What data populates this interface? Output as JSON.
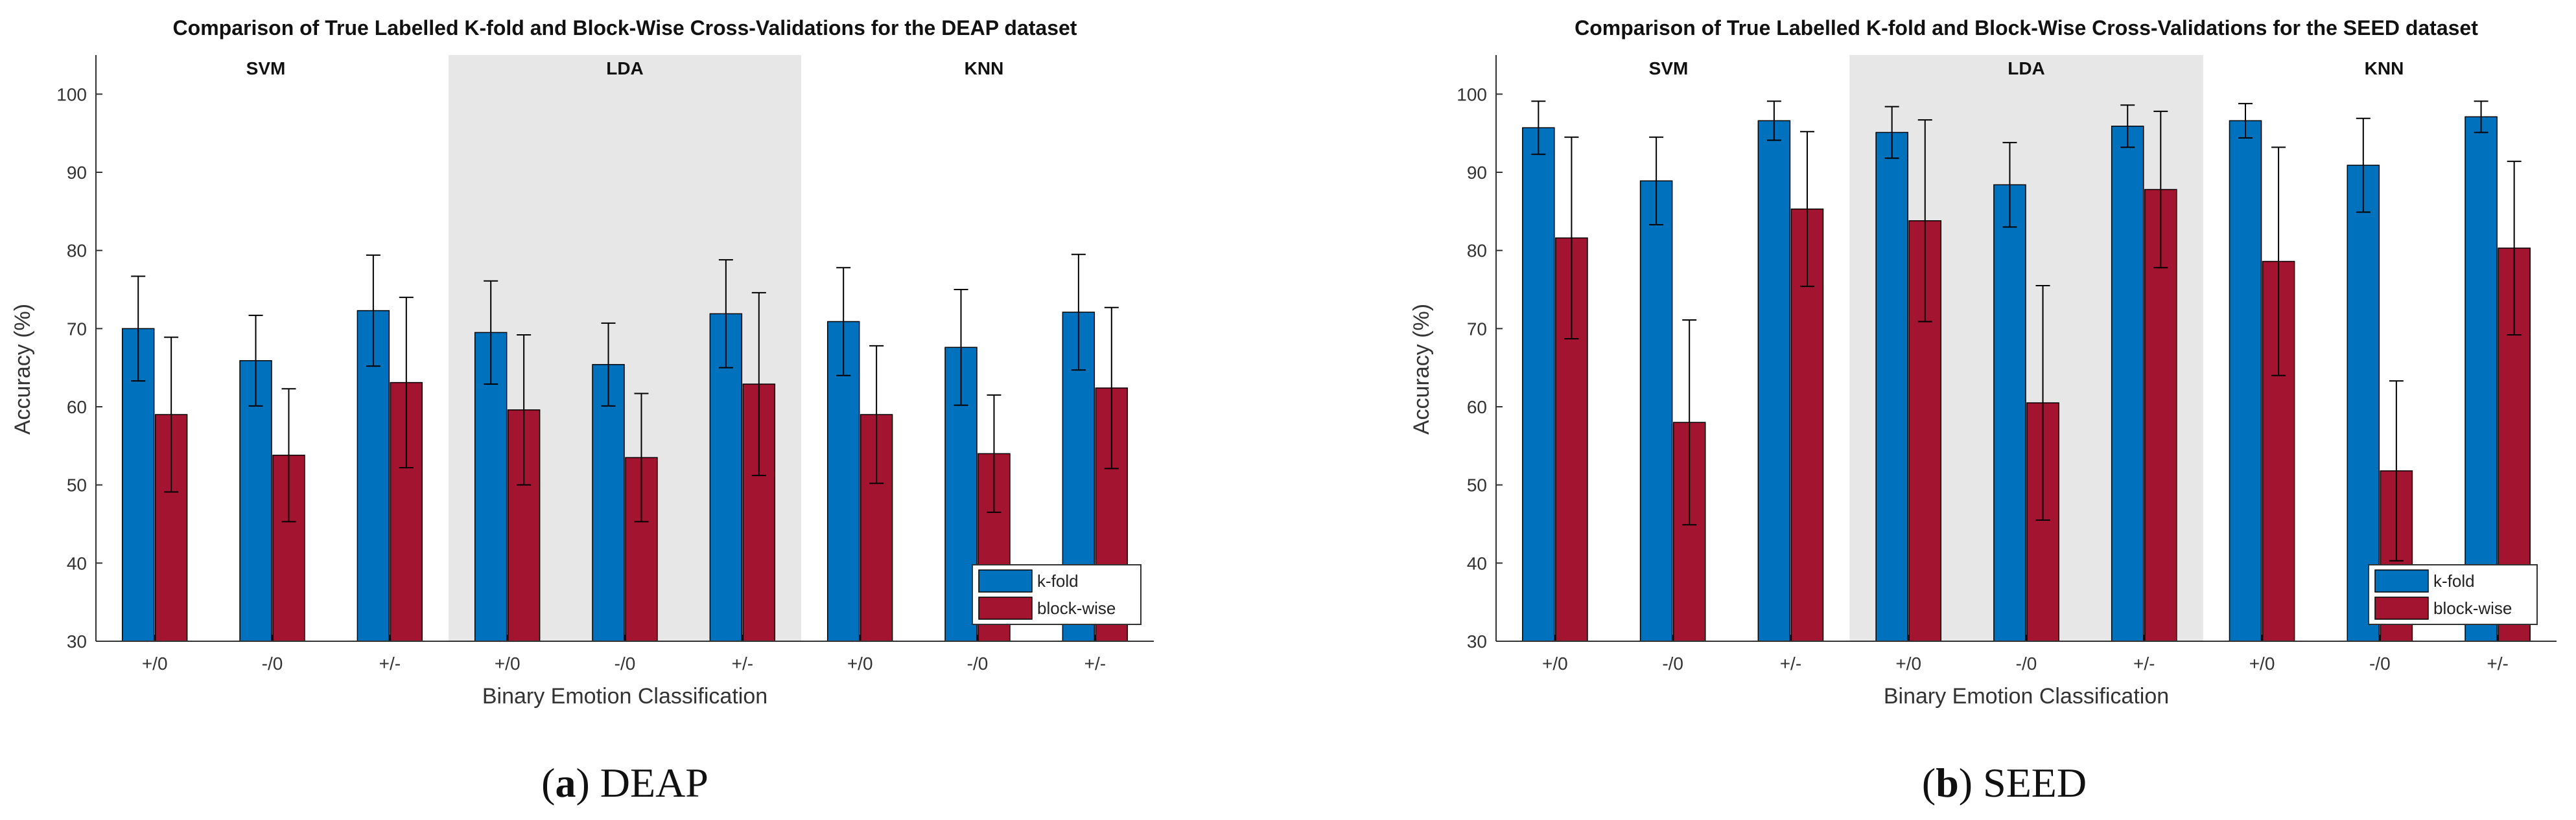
{
  "colors": {
    "kfold": "#0072BD",
    "blockwise": "#A2142F",
    "shade": "#E7E7E7"
  },
  "chart_data": [
    {
      "type": "bar",
      "title": "Comparison of True Labelled K-fold and Block-Wise Cross-Validations for the DEAP dataset",
      "xlabel": "Binary Emotion Classification",
      "ylabel": "Accuracy (%)",
      "ylim": [
        30,
        105
      ],
      "yticks": [
        30,
        40,
        50,
        60,
        70,
        80,
        90,
        100
      ],
      "groups": [
        "SVM",
        "LDA",
        "KNN"
      ],
      "shaded_group": "LDA",
      "categories": [
        "+/0",
        "-/0",
        "+/-",
        "+/0",
        "-/0",
        "+/-",
        "+/0",
        "-/0",
        "+/-"
      ],
      "legend_position": "bottom-right",
      "series": [
        {
          "name": "k-fold",
          "values": [
            70.0,
            65.9,
            72.3,
            69.5,
            65.4,
            71.9,
            70.9,
            67.6,
            72.1
          ],
          "err": [
            6.7,
            5.8,
            7.1,
            6.6,
            5.3,
            6.9,
            6.9,
            7.4,
            7.4
          ]
        },
        {
          "name": "block-wise",
          "values": [
            59.0,
            53.8,
            63.1,
            59.6,
            53.5,
            62.9,
            59.0,
            54.0,
            62.4
          ],
          "err": [
            9.9,
            8.5,
            10.9,
            9.6,
            8.2,
            11.7,
            8.8,
            7.5,
            10.3
          ]
        }
      ],
      "caption_label": "(a)",
      "caption_text": "DEAP"
    },
    {
      "type": "bar",
      "title": "Comparison of True Labelled K-fold and Block-Wise Cross-Validations for the SEED dataset",
      "xlabel": "Binary Emotion Classification",
      "ylabel": "Accuracy (%)",
      "ylim": [
        30,
        105
      ],
      "yticks": [
        30,
        40,
        50,
        60,
        70,
        80,
        90,
        100
      ],
      "groups": [
        "SVM",
        "LDA",
        "KNN"
      ],
      "shaded_group": "LDA",
      "categories": [
        "+/0",
        "-/0",
        "+/-",
        "+/0",
        "-/0",
        "+/-",
        "+/0",
        "-/0",
        "+/-"
      ],
      "legend_position": "bottom-right",
      "series": [
        {
          "name": "k-fold",
          "values": [
            95.7,
            88.9,
            96.6,
            95.1,
            88.4,
            95.9,
            96.6,
            90.9,
            97.1
          ],
          "err": [
            3.4,
            5.6,
            2.5,
            3.3,
            5.4,
            2.7,
            2.2,
            6.0,
            2.0
          ]
        },
        {
          "name": "block-wise",
          "values": [
            81.6,
            58.0,
            85.3,
            83.8,
            60.5,
            87.8,
            78.6,
            51.8,
            80.3
          ],
          "err": [
            12.9,
            13.1,
            9.9,
            12.9,
            15.0,
            10.0,
            14.6,
            11.5,
            11.1
          ]
        }
      ],
      "caption_label": "(b)",
      "caption_text": "SEED"
    }
  ]
}
